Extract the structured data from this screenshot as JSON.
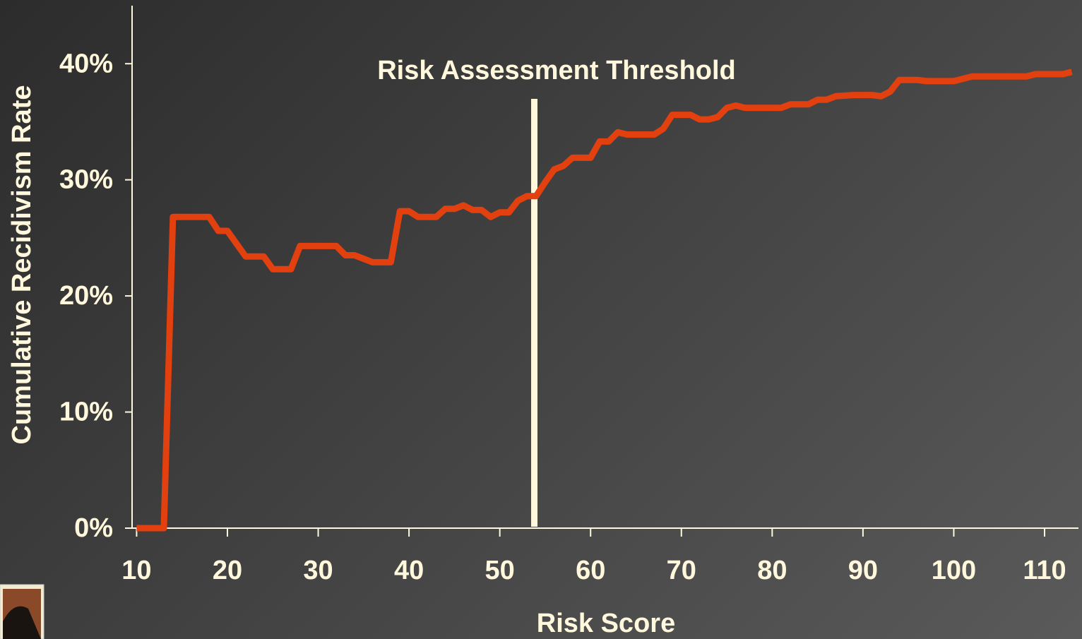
{
  "chart_data": {
    "type": "line",
    "xlabel": "Risk Score",
    "ylabel": "Cumulative Recidivism Rate",
    "x": [
      10,
      13,
      14,
      18,
      19,
      20,
      22,
      24,
      25,
      27,
      28,
      32,
      33,
      34,
      36,
      38,
      39,
      40,
      41,
      43,
      44,
      45,
      46,
      47,
      48,
      49,
      50,
      51,
      52,
      53,
      54,
      55,
      56,
      57,
      58,
      60,
      61,
      62,
      63,
      64,
      67,
      68,
      69,
      71,
      72,
      73,
      74,
      75,
      76,
      77,
      81,
      82,
      84,
      85,
      86,
      87,
      89,
      91,
      92,
      93,
      94,
      96,
      97,
      100,
      101,
      102,
      108,
      109,
      112,
      113
    ],
    "series": [
      {
        "name": "Cumulative Recidivism Rate",
        "color": "#e2400f",
        "values": [
          0,
          0,
          26.8,
          26.8,
          25.6,
          25.6,
          23.4,
          23.4,
          22.3,
          22.3,
          24.3,
          24.3,
          23.5,
          23.5,
          22.9,
          22.9,
          27.3,
          27.3,
          26.8,
          26.8,
          27.5,
          27.5,
          27.8,
          27.4,
          27.4,
          26.8,
          27.2,
          27.2,
          28.2,
          28.6,
          28.6,
          29.8,
          30.9,
          31.2,
          31.9,
          31.9,
          33.3,
          33.3,
          34.1,
          33.9,
          33.9,
          34.4,
          35.6,
          35.6,
          35.2,
          35.2,
          35.4,
          36.2,
          36.4,
          36.2,
          36.2,
          36.5,
          36.5,
          36.9,
          36.9,
          37.2,
          37.3,
          37.3,
          37.2,
          37.6,
          38.6,
          38.6,
          38.5,
          38.5,
          38.7,
          38.9,
          38.9,
          39.1,
          39.1,
          39.3
        ]
      }
    ],
    "xlim": [
      9.5,
      113.5
    ],
    "xticks": [
      10,
      20,
      30,
      40,
      50,
      60,
      70,
      80,
      90,
      100,
      110
    ],
    "ylim": [
      0,
      45
    ],
    "yticks": [
      {
        "value": 0,
        "label": "0%"
      },
      {
        "value": 10,
        "label": "10%"
      },
      {
        "value": 20,
        "label": "20%"
      },
      {
        "value": 30,
        "label": "30%"
      },
      {
        "value": 40,
        "label": "40%"
      }
    ],
    "threshold": {
      "x": 53.8,
      "label": "Risk Assessment Threshold",
      "color": "#fff8dc"
    }
  }
}
